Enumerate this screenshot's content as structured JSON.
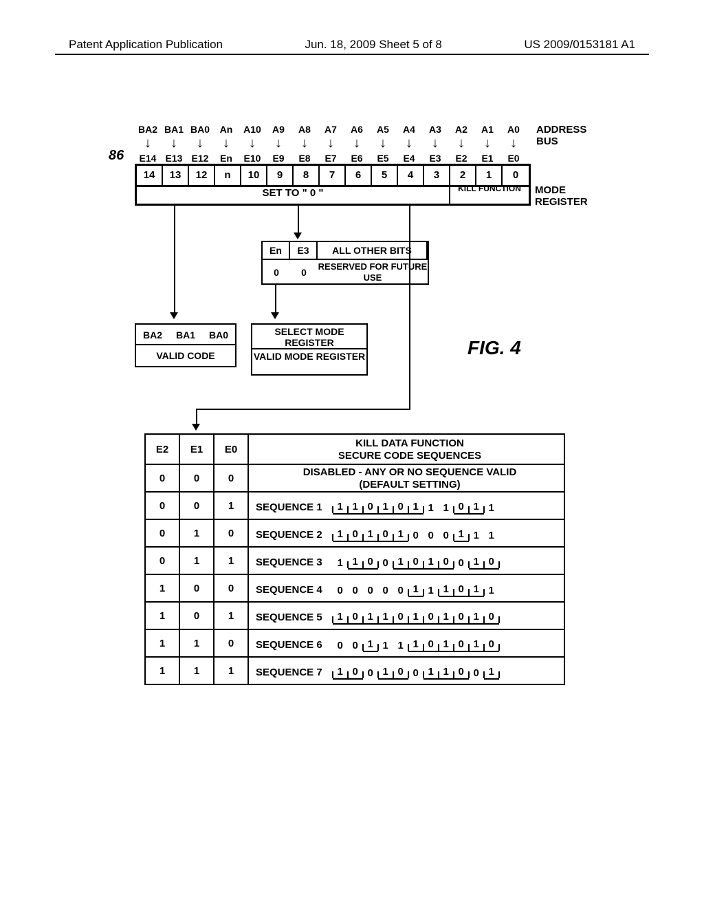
{
  "header": {
    "left": "Patent Application Publication",
    "center": "Jun. 18, 2009  Sheet 5 of 8",
    "right": "US 2009/0153181 A1"
  },
  "ref_num": "86",
  "address_bus": {
    "labels": [
      "BA2",
      "BA1",
      "BA0",
      "An",
      "A10",
      "A9",
      "A8",
      "A7",
      "A6",
      "A5",
      "A4",
      "A3",
      "A2",
      "A1",
      "A0"
    ],
    "title": "ADDRESS BUS"
  },
  "e_row": [
    "E14",
    "E13",
    "E12",
    "En",
    "E10",
    "E9",
    "E8",
    "E7",
    "E6",
    "E5",
    "E4",
    "E3",
    "E2",
    "E1",
    "E0"
  ],
  "mode_register": {
    "indices": [
      "14",
      "13",
      "12",
      "n",
      "10",
      "9",
      "8",
      "7",
      "6",
      "5",
      "4",
      "3",
      "2",
      "1",
      "0"
    ],
    "set0": "SET TO \" 0 \"",
    "kill": "KILL FUNCTION",
    "label": "MODE REGISTER"
  },
  "reserved": {
    "h1": "En",
    "h2": "E3",
    "h3": "ALL OTHER BITS",
    "v1": "0",
    "v2": "0",
    "v3": "RESERVED FOR FUTURE USE"
  },
  "ba_box": {
    "headers": [
      "BA2",
      "BA1",
      "BA0"
    ],
    "valid": "VALID CODE"
  },
  "sel_box": {
    "r1": "SELECT MODE REGISTER",
    "r2": "VALID MODE REGISTER"
  },
  "fig_label": "FIG. 4",
  "kill_table": {
    "head": {
      "e2": "E2",
      "e1": "E1",
      "e0": "E0",
      "desc": "KILL DATA FUNCTION\nSECURE CODE SEQUENCES"
    },
    "rows": [
      {
        "e2": "0",
        "e1": "0",
        "e0": "0",
        "desc_type": "text",
        "desc": "DISABLED - ANY OR NO SEQUENCE VALID\n(DEFAULT SETTING)"
      },
      {
        "e2": "0",
        "e1": "0",
        "e0": "1",
        "desc_type": "seq",
        "label": "SEQUENCE 1",
        "bits": [
          "1",
          "1",
          "0",
          "1",
          "0",
          "1",
          "1",
          "1",
          "0",
          "1",
          "1"
        ],
        "pattern": [
          1,
          1,
          1,
          1,
          1,
          1,
          0,
          0,
          1,
          1,
          0
        ]
      },
      {
        "e2": "0",
        "e1": "1",
        "e0": "0",
        "desc_type": "seq",
        "label": "SEQUENCE 2",
        "bits": [
          "1",
          "0",
          "1",
          "0",
          "1",
          "0",
          "0",
          "0",
          "1",
          "1",
          "1"
        ],
        "pattern": [
          1,
          1,
          1,
          1,
          1,
          0,
          0,
          0,
          1,
          0,
          0
        ]
      },
      {
        "e2": "0",
        "e1": "1",
        "e0": "1",
        "desc_type": "seq",
        "label": "SEQUENCE 3",
        "bits": [
          "1",
          "1",
          "0",
          "0",
          "1",
          "0",
          "1",
          "0",
          "0",
          "1",
          "0"
        ],
        "pattern": [
          0,
          1,
          1,
          0,
          1,
          1,
          1,
          1,
          0,
          1,
          1
        ]
      },
      {
        "e2": "1",
        "e1": "0",
        "e0": "0",
        "desc_type": "seq",
        "label": "SEQUENCE 4",
        "bits": [
          "0",
          "0",
          "0",
          "0",
          "0",
          "1",
          "1",
          "1",
          "0",
          "1",
          "1"
        ],
        "pattern": [
          0,
          0,
          0,
          0,
          0,
          1,
          0,
          1,
          1,
          1,
          0
        ]
      },
      {
        "e2": "1",
        "e1": "0",
        "e0": "1",
        "desc_type": "seq",
        "label": "SEQUENCE 5",
        "bits": [
          "1",
          "0",
          "1",
          "1",
          "0",
          "1",
          "0",
          "1",
          "0",
          "1",
          "0"
        ],
        "pattern": [
          1,
          1,
          1,
          1,
          1,
          1,
          1,
          1,
          1,
          1,
          1
        ]
      },
      {
        "e2": "1",
        "e1": "1",
        "e0": "0",
        "desc_type": "seq",
        "label": "SEQUENCE 6",
        "bits": [
          "0",
          "0",
          "1",
          "1",
          "1",
          "1",
          "0",
          "1",
          "0",
          "1",
          "0"
        ],
        "pattern": [
          0,
          0,
          1,
          0,
          0,
          1,
          1,
          1,
          1,
          1,
          1
        ]
      },
      {
        "e2": "1",
        "e1": "1",
        "e0": "1",
        "desc_type": "seq",
        "label": "SEQUENCE 7",
        "bits": [
          "1",
          "0",
          "0",
          "1",
          "0",
          "0",
          "1",
          "1",
          "0",
          "0",
          "1"
        ],
        "pattern": [
          1,
          1,
          0,
          1,
          1,
          0,
          1,
          1,
          1,
          0,
          1
        ]
      }
    ]
  },
  "colors": {
    "background": "#ffffff",
    "foreground": "#000000"
  }
}
